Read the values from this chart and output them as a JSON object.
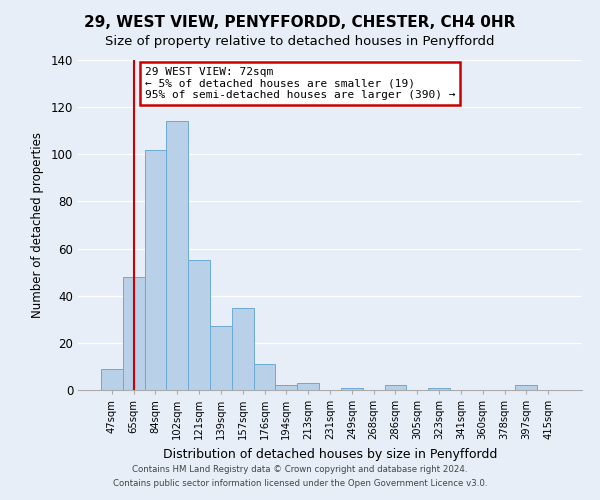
{
  "title": "29, WEST VIEW, PENYFFORDD, CHESTER, CH4 0HR",
  "subtitle": "Size of property relative to detached houses in Penyffordd",
  "xlabel": "Distribution of detached houses by size in Penyffordd",
  "ylabel": "Number of detached properties",
  "bar_labels": [
    "47sqm",
    "65sqm",
    "84sqm",
    "102sqm",
    "121sqm",
    "139sqm",
    "157sqm",
    "176sqm",
    "194sqm",
    "213sqm",
    "231sqm",
    "249sqm",
    "268sqm",
    "286sqm",
    "305sqm",
    "323sqm",
    "341sqm",
    "360sqm",
    "378sqm",
    "397sqm",
    "415sqm"
  ],
  "bar_values": [
    9,
    48,
    102,
    114,
    55,
    27,
    35,
    11,
    2,
    3,
    0,
    1,
    0,
    2,
    0,
    1,
    0,
    0,
    0,
    2,
    0
  ],
  "bar_color": "#b8d0e8",
  "bar_edge_color": "#6aaad4",
  "ylim": [
    0,
    140
  ],
  "yticks": [
    0,
    20,
    40,
    60,
    80,
    100,
    120,
    140
  ],
  "vline_x": 1,
  "vline_color": "#cc0000",
  "annotation_title": "29 WEST VIEW: 72sqm",
  "annotation_line1": "← 5% of detached houses are smaller (19)",
  "annotation_line2": "95% of semi-detached houses are larger (390) →",
  "annotation_box_color": "#ffffff",
  "annotation_box_edge": "#cc0000",
  "footer_line1": "Contains HM Land Registry data © Crown copyright and database right 2024.",
  "footer_line2": "Contains public sector information licensed under the Open Government Licence v3.0.",
  "background_color": "#e8eef7",
  "plot_background": "#e8eef7",
  "grid_color": "#ffffff",
  "title_fontsize": 11,
  "subtitle_fontsize": 9.5
}
